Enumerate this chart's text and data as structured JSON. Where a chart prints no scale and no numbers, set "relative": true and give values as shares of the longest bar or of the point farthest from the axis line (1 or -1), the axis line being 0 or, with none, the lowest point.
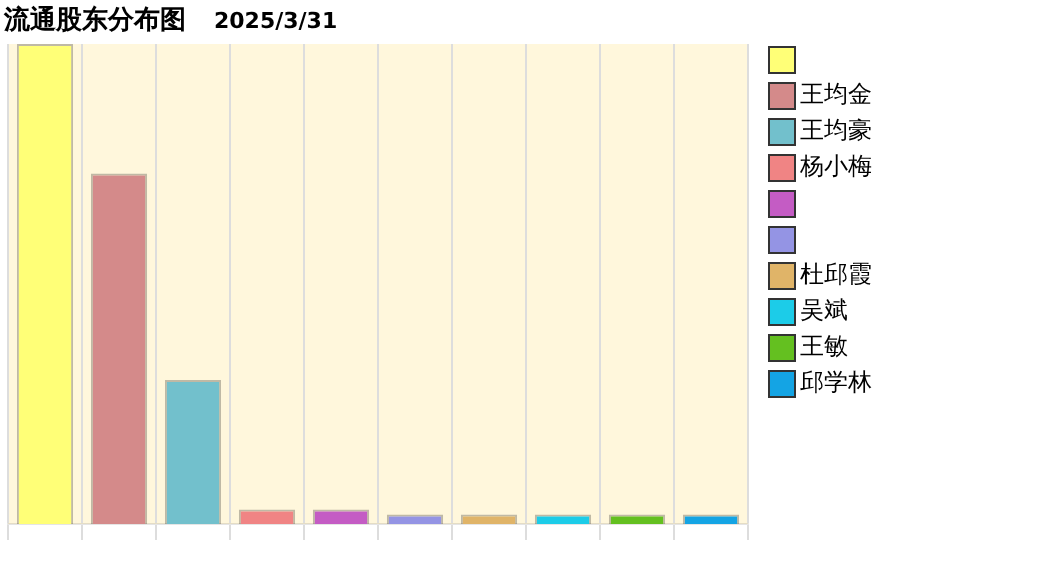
{
  "chart_data": {
    "type": "bar",
    "title": "流通股东分布图",
    "subtitle": "2025/3/31",
    "relative": true,
    "categories": [
      null,
      null,
      null,
      null,
      null,
      null,
      null,
      null,
      null,
      null
    ],
    "values": [
      1,
      0.73,
      0.3,
      0.03,
      0.03,
      0.02,
      0.02,
      0.02,
      0.02,
      0.02
    ],
    "colors": [
      "#ffff77",
      "#d48a8a",
      "#72c0cc",
      "#f08484",
      "#c45cc4",
      "#9494e4",
      "#e0b468",
      "#1ccce8",
      "#64c020",
      "#14a4e4"
    ],
    "annotations": [
      null,
      "王均金",
      "王均豪",
      "杨小梅",
      null,
      null,
      "杜邱霞",
      "吴斌",
      "王敏",
      "邱学林"
    ],
    "grid": "x"
  }
}
